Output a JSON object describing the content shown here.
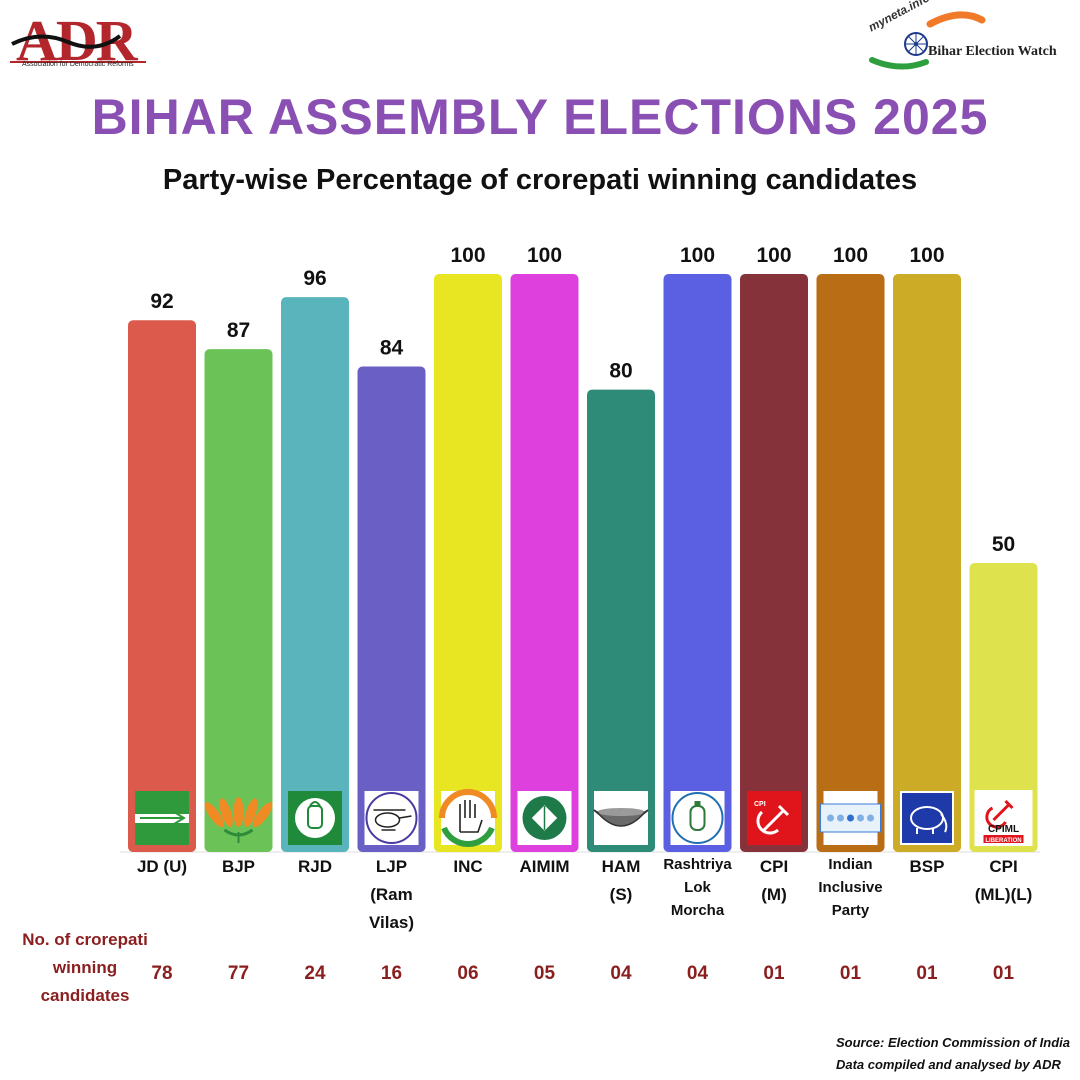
{
  "header": {
    "adr_logo_text": "ADR",
    "adr_full_name": "Association for Democratic Reforms",
    "myneta_brand": "myneta.info",
    "myneta_text": "Bihar Election Watch"
  },
  "title": "BIHAR ASSEMBLY ELECTIONS 2025",
  "subtitle": "Party-wise Percentage of crorepati winning candidates",
  "count_heading": "No. of crorepati winning candidates",
  "source": {
    "line1": "Source: Election Commission of India",
    "line2": "Data compiled and analysed by ADR"
  },
  "chart_data": {
    "type": "bar",
    "title": "Party-wise Percentage of crorepati winning candidates",
    "xlabel": "",
    "ylabel": "",
    "ylim": [
      0,
      100
    ],
    "grid": false,
    "categories": [
      "JD (U)",
      "BJP",
      "RJD",
      "LJP (Ram Vilas)",
      "INC",
      "AIMIM",
      "HAM (S)",
      "Rashtriya Lok Morcha",
      "CPI (M)",
      "Indian Inclusive Party",
      "BSP",
      "CPI (ML)(L)"
    ],
    "label_lines": [
      [
        "JD (U)"
      ],
      [
        "BJP"
      ],
      [
        "RJD"
      ],
      [
        "LJP",
        "(Ram",
        "Vilas)"
      ],
      [
        "INC"
      ],
      [
        "AIMIM"
      ],
      [
        "HAM",
        "(S)"
      ],
      [
        "Rashtriya",
        "Lok",
        "Morcha"
      ],
      [
        "CPI",
        "(M)"
      ],
      [
        "Indian",
        "Inclusive",
        "Party"
      ],
      [
        "BSP"
      ],
      [
        "CPI",
        "(ML)(L)"
      ]
    ],
    "values": [
      92,
      87,
      96,
      84,
      100,
      100,
      80,
      100,
      100,
      100,
      100,
      50
    ],
    "crorepati_counts": [
      "78",
      "77",
      "24",
      "16",
      "06",
      "05",
      "04",
      "04",
      "01",
      "01",
      "01",
      "01"
    ],
    "colors": [
      "#dc5a4b",
      "#6bc358",
      "#59b4bc",
      "#6a5fc4",
      "#e8e623",
      "#de40de",
      "#2e8b77",
      "#5b60e2",
      "#85323a",
      "#b96d14",
      "#ccac26",
      "#dee24d"
    ],
    "symbols": [
      "arrow-flag",
      "lotus",
      "lantern",
      "helicopter",
      "hand",
      "kite",
      "wok",
      "gas-cylinder",
      "hammer-sickle",
      "ship",
      "elephant",
      "hammer-sickle-liberation"
    ],
    "symbol_texts": [
      "",
      "",
      "",
      "",
      "",
      "",
      "",
      "",
      "CPI",
      "",
      "",
      "CPIML LIBERATION"
    ]
  }
}
